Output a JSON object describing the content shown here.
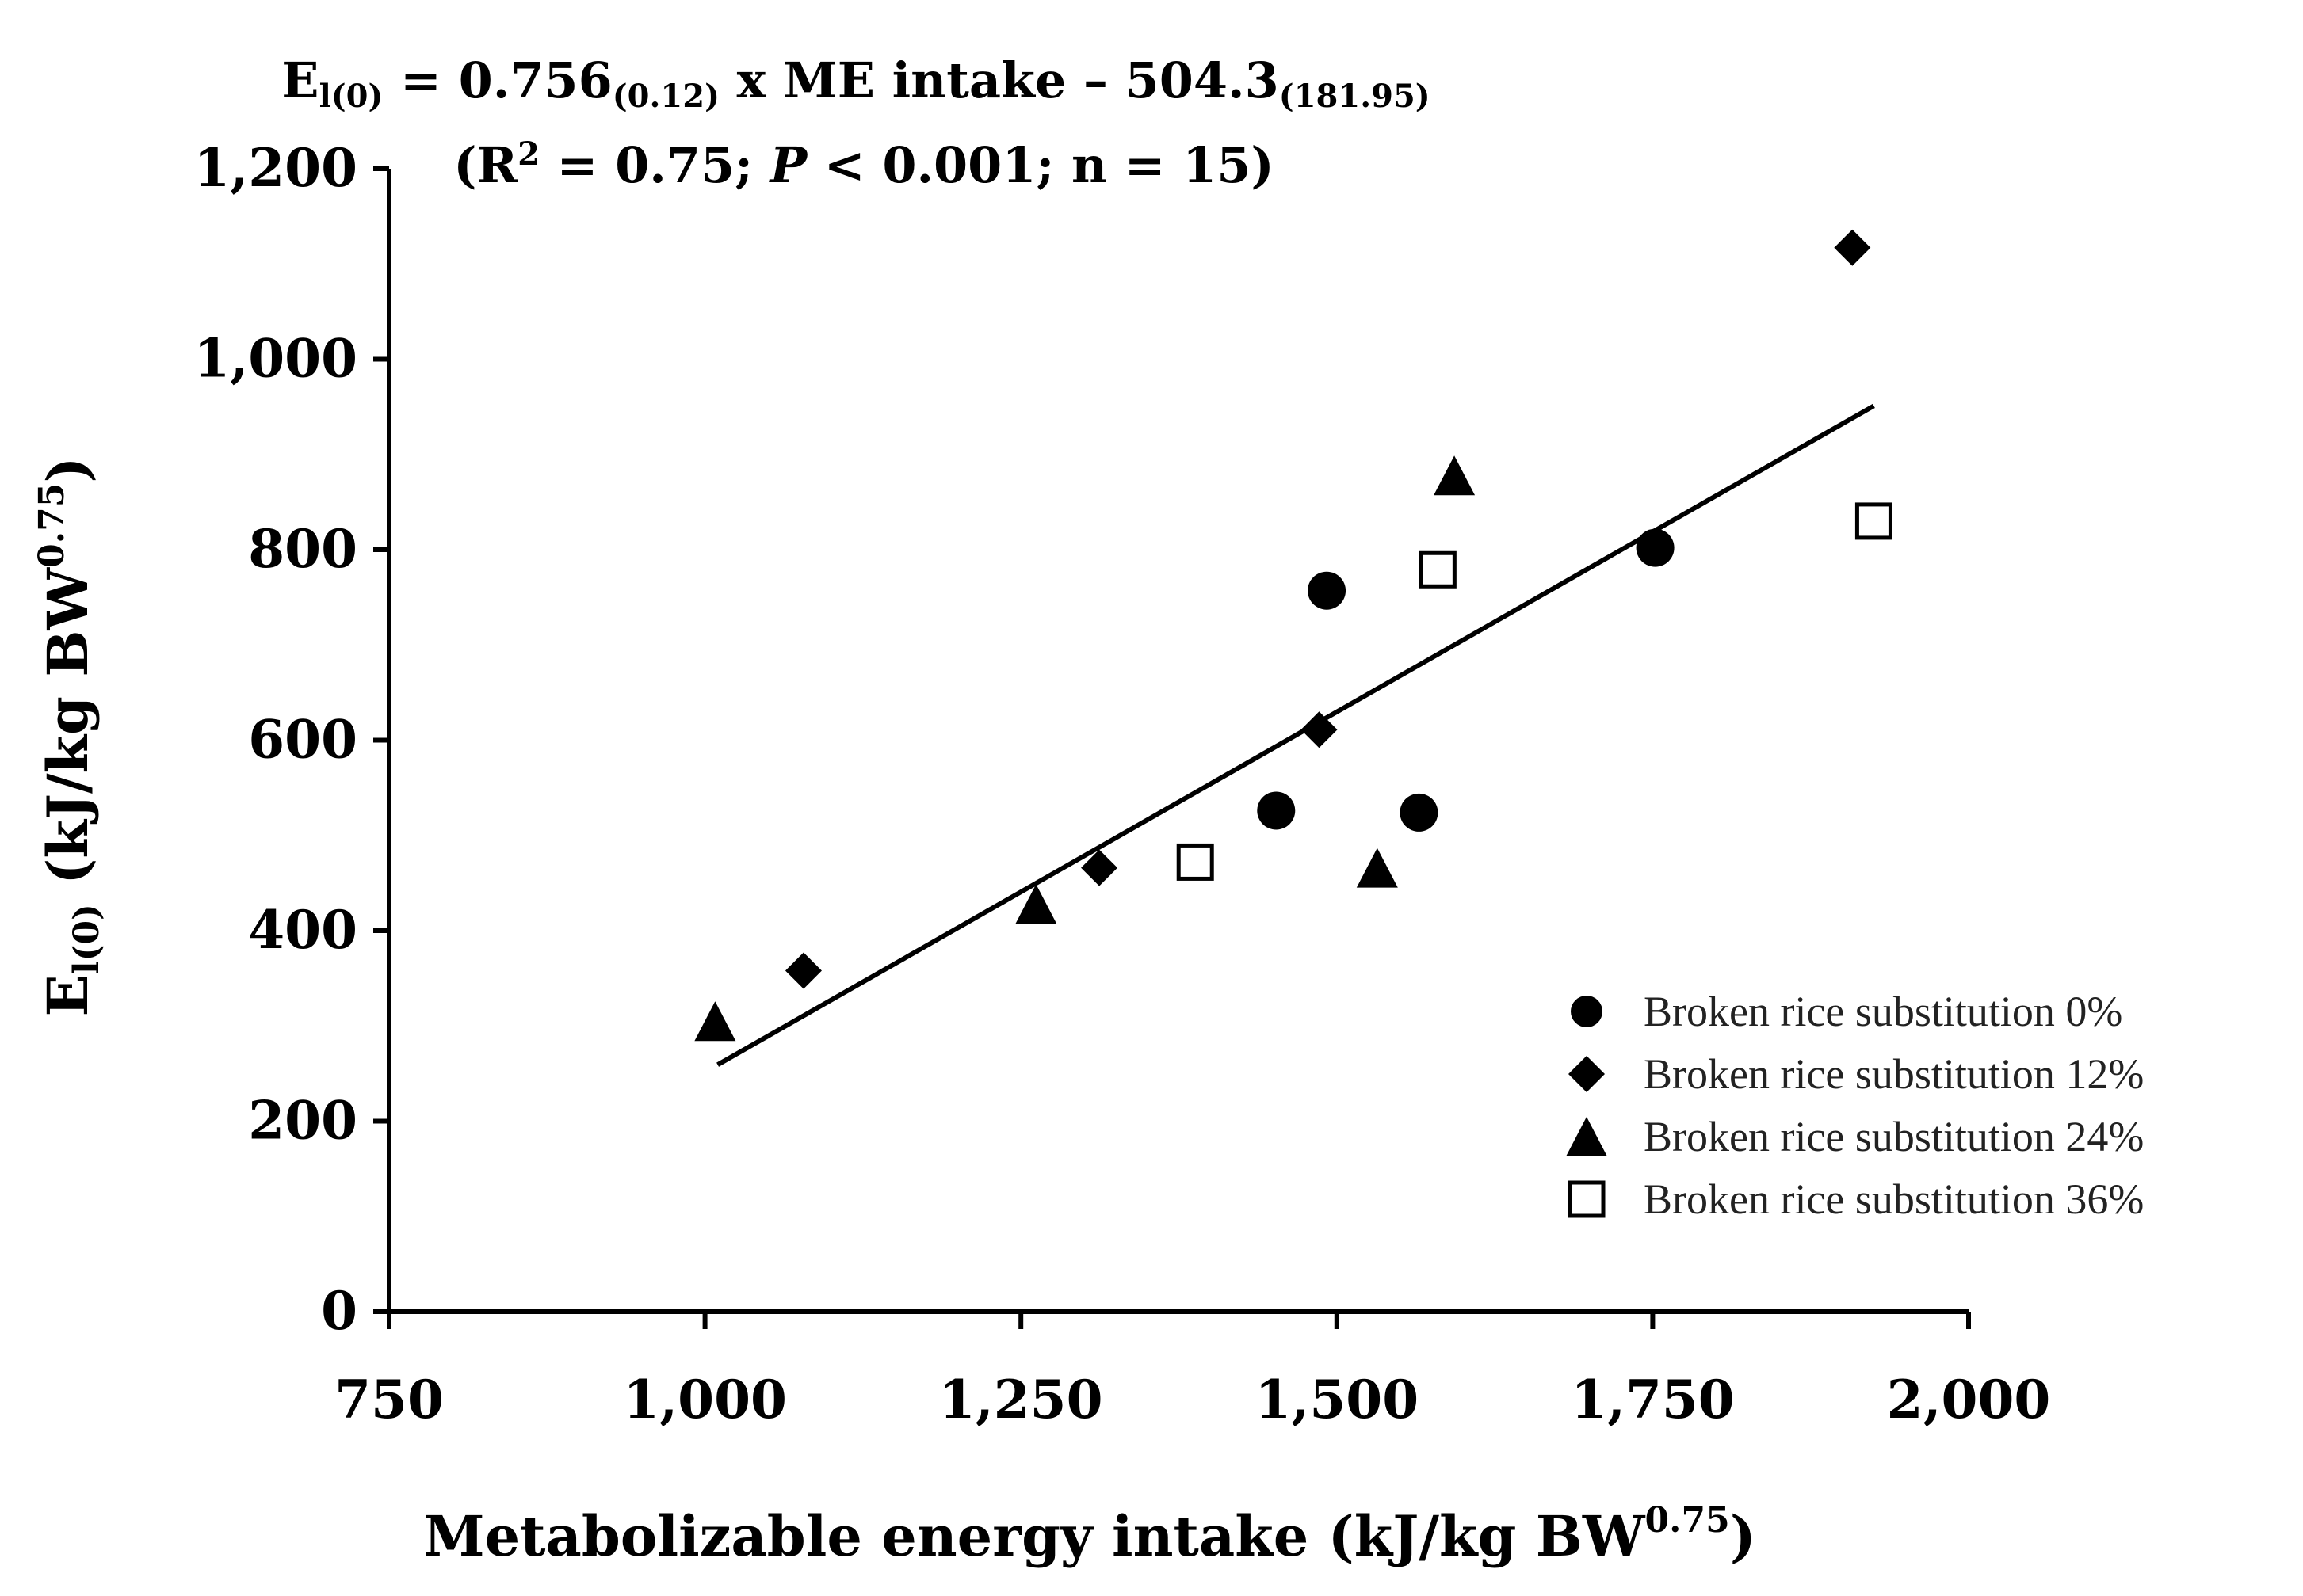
{
  "chart_data": {
    "type": "scatter",
    "title_line1": {
      "lhs": "E",
      "lhs_sub": "l(0)",
      "eq1": " = 0.756",
      "coef_se": "(0.12)",
      "eq2": " x ME intake – 504.3",
      "intercept_se": "(181.95)"
    },
    "title_line2": {
      "open": "(R",
      "sup": "2",
      "mid": " = 0.75; ",
      "p_italic": "P",
      "close": " < 0.001; n = 15)"
    },
    "xlabel": {
      "text": "Metabolizable energy intake (kJ/kg BW",
      "sup": "0.75",
      "close": ")"
    },
    "ylabel": {
      "main": "E",
      "sub": "l(0)",
      "unit": " (kJ/kg BW",
      "sup": "0.75",
      "close": ")"
    },
    "xlim": [
      750,
      2000
    ],
    "ylim": [
      0,
      1200
    ],
    "xticks": [
      750,
      1000,
      1250,
      1500,
      1750,
      2000
    ],
    "xtick_labels": [
      "750",
      "1,000",
      "1,250",
      "1,500",
      "1,750",
      "2,000"
    ],
    "yticks": [
      0,
      200,
      400,
      600,
      800,
      1000,
      1200
    ],
    "ytick_labels": [
      "0",
      "200",
      "400",
      "600",
      "800",
      "1,000",
      "1,200"
    ],
    "regression": {
      "slope": 0.756,
      "intercept": -504.3,
      "x_range": [
        1010,
        1925
      ]
    },
    "legend_position": "lower-right",
    "series": [
      {
        "name": "Broken rice substitution 0%",
        "marker": "circle",
        "points": [
          [
            1452,
            526
          ],
          [
            1492,
            757
          ],
          [
            1565,
            524
          ],
          [
            1752,
            802
          ]
        ]
      },
      {
        "name": "Broken rice substitution 12%",
        "marker": "diamond",
        "points": [
          [
            1078,
            358
          ],
          [
            1312,
            466
          ],
          [
            1486,
            611
          ],
          [
            1908,
            1117
          ]
        ]
      },
      {
        "name": "Broken rice substitution 24%",
        "marker": "triangle",
        "points": [
          [
            1008,
            305
          ],
          [
            1262,
            428
          ],
          [
            1532,
            466
          ],
          [
            1593,
            878
          ]
        ]
      },
      {
        "name": "Broken rice substitution 36%",
        "marker": "open-square",
        "points": [
          [
            1388,
            472
          ],
          [
            1580,
            779
          ],
          [
            1925,
            830
          ]
        ]
      }
    ]
  }
}
